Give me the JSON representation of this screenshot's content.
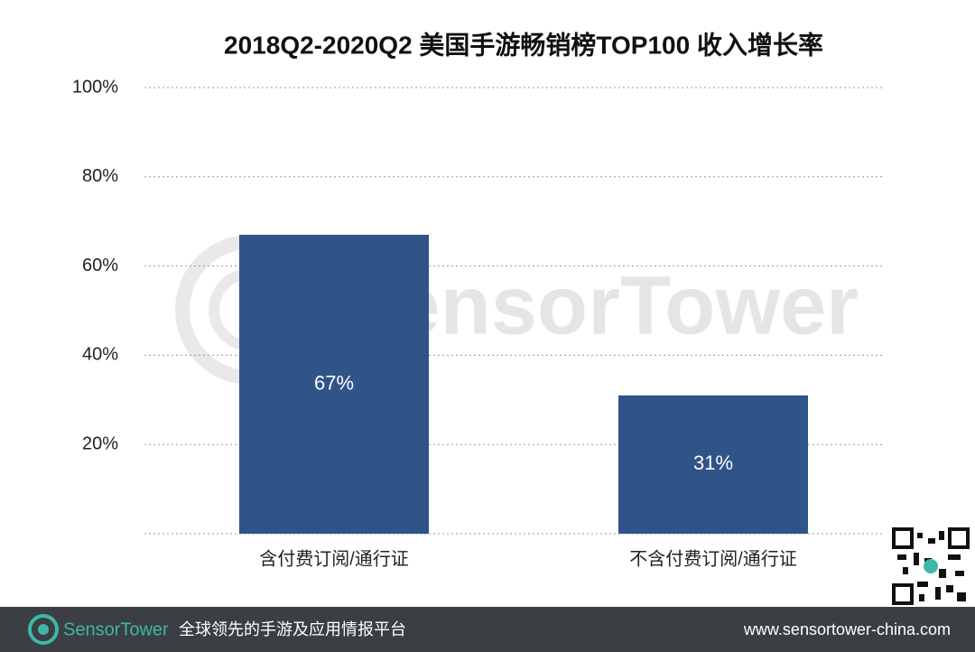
{
  "chart_data": {
    "type": "bar",
    "title": "2018Q2-2020Q2 美国手游畅销榜TOP100 收入增长率",
    "categories": [
      "含付费订阅/通行证",
      "不含付费订阅/通行证"
    ],
    "values": [
      67,
      31
    ],
    "value_labels": [
      "67%",
      "31%"
    ],
    "color": "#2f5487",
    "ylim": [
      0,
      100
    ],
    "yticks": [
      {
        "value": 20,
        "label": "20%"
      },
      {
        "value": 40,
        "label": "40%"
      },
      {
        "value": 60,
        "label": "60%"
      },
      {
        "value": 80,
        "label": "80%"
      },
      {
        "value": 100,
        "label": "100%"
      }
    ],
    "grid": true
  },
  "watermark": "SensorTower",
  "footer": {
    "brand": "SensorTower",
    "tagline": "全球领先的手游及应用情报平台",
    "url": "www.sensortower-china.com"
  }
}
